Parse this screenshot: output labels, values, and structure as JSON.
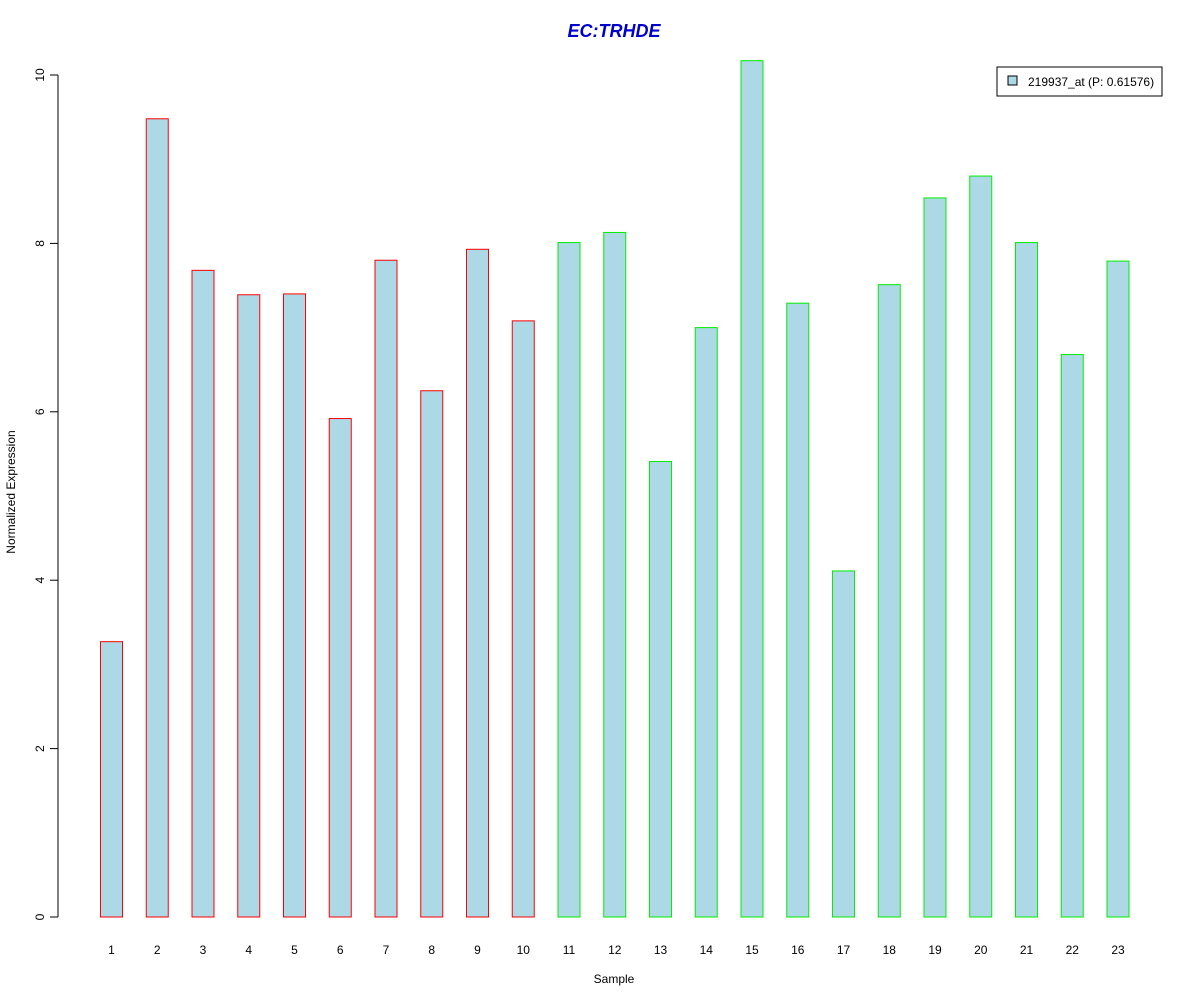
{
  "chart_data": {
    "type": "bar",
    "title": "EC:TRHDE",
    "xlabel": "Sample",
    "ylabel": "Normalized Expression",
    "categories": [
      "1",
      "2",
      "3",
      "4",
      "5",
      "6",
      "7",
      "8",
      "9",
      "10",
      "11",
      "12",
      "13",
      "14",
      "15",
      "16",
      "17",
      "18",
      "19",
      "20",
      "21",
      "22",
      "23"
    ],
    "values": [
      3.27,
      9.48,
      7.68,
      7.39,
      7.4,
      5.92,
      7.8,
      6.25,
      7.93,
      7.08,
      8.01,
      8.13,
      5.41,
      7.0,
      10.17,
      7.29,
      4.11,
      7.51,
      8.54,
      8.8,
      8.01,
      6.68,
      7.79
    ],
    "groups": [
      "a",
      "a",
      "a",
      "a",
      "a",
      "a",
      "a",
      "a",
      "a",
      "a",
      "b",
      "b",
      "b",
      "b",
      "b",
      "b",
      "b",
      "b",
      "b",
      "b",
      "b",
      "b",
      "b"
    ],
    "yticks": [
      0,
      2,
      4,
      6,
      8,
      10
    ],
    "ylim": [
      0,
      10.2
    ],
    "grid": false,
    "legend": {
      "label": "219937_at (P: 0.61576)",
      "placement": "top-right"
    },
    "colors": {
      "bar_fill": "#add8e6",
      "group_a_border": "#ff0000",
      "group_b_border": "#00ee00",
      "title": "#0000cd",
      "axis": "#000000"
    }
  }
}
